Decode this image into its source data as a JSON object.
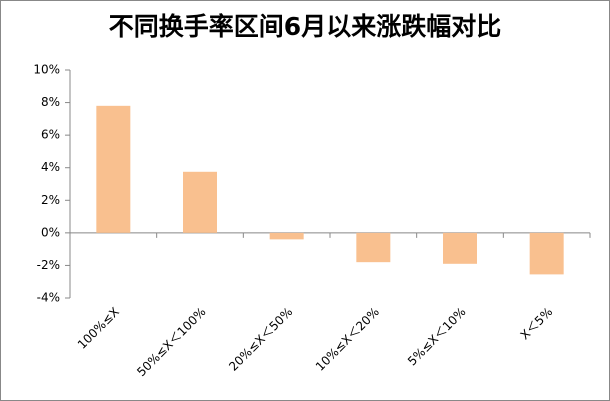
{
  "chart_data": {
    "type": "bar",
    "title": "不同换手率区间6月以来涨跌幅对比",
    "categories": [
      "100%≤X",
      "50%≤X＜100%",
      "20%≤X＜50%",
      "10%≤X＜20%",
      "5%≤X＜10%",
      "X＜5%"
    ],
    "values": [
      7.8,
      3.75,
      -0.4,
      -1.8,
      -1.9,
      -2.55
    ],
    "color": "#f9c08f",
    "ylim": [
      -4,
      10
    ],
    "yticks": [
      {
        "value": -4,
        "label": "-4%"
      },
      {
        "value": -2,
        "label": "-2%"
      },
      {
        "value": 0,
        "label": "0%"
      },
      {
        "value": 2,
        "label": "2%"
      },
      {
        "value": 4,
        "label": "4%"
      },
      {
        "value": 6,
        "label": "6%"
      },
      {
        "value": 8,
        "label": "8%"
      },
      {
        "value": 10,
        "label": "10%"
      }
    ],
    "grid": false
  }
}
